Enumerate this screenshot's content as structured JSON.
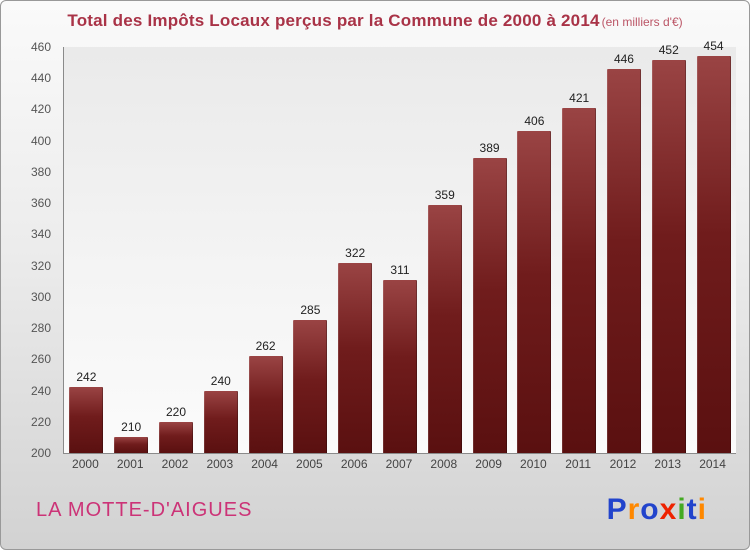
{
  "title": "Total des Impôts Locaux perçus par la Commune de 2000 à 2014",
  "subtitle": "(en milliers d'€)",
  "footer": {
    "commune": "LA MOTTE-D'AIGUES"
  },
  "logo": {
    "name": "Proxiti",
    "letters": [
      {
        "ch": "P",
        "color": "#2244cc"
      },
      {
        "ch": "r",
        "color": "#ff8800"
      },
      {
        "ch": "o",
        "color": "#2244cc"
      },
      {
        "ch": "x",
        "color": "#ee2200"
      },
      {
        "ch": "i",
        "color": "#44aa22"
      },
      {
        "ch": "t",
        "color": "#2244cc"
      },
      {
        "ch": "i",
        "color": "#ff8800"
      }
    ]
  },
  "colors": {
    "title": "#a93347",
    "subtitle": "#bb5566",
    "commune": "#cc3377",
    "bar_top": "#9a4444",
    "bar_mid": "#701c1c",
    "bar_bottom": "#5a1010",
    "value_label": "#222222",
    "axis_text": "#555555",
    "axis_line": "#8a8a8a",
    "frame_border": "#999999"
  },
  "chart_data": {
    "type": "bar",
    "title": "Total des Impôts Locaux perçus par la Commune de 2000 à 2014",
    "subtitle": "(en milliers d'€)",
    "categories": [
      "2000",
      "2001",
      "2002",
      "2003",
      "2004",
      "2005",
      "2006",
      "2007",
      "2008",
      "2009",
      "2010",
      "2011",
      "2012",
      "2013",
      "2014"
    ],
    "values": [
      242,
      210,
      220,
      240,
      262,
      285,
      322,
      311,
      359,
      389,
      406,
      421,
      446,
      452,
      454
    ],
    "xlabel": "",
    "ylabel": "",
    "ylim": [
      200,
      460
    ],
    "ytick_step": 20,
    "grid": false,
    "legend": false,
    "bar_color": "#701c1c"
  }
}
